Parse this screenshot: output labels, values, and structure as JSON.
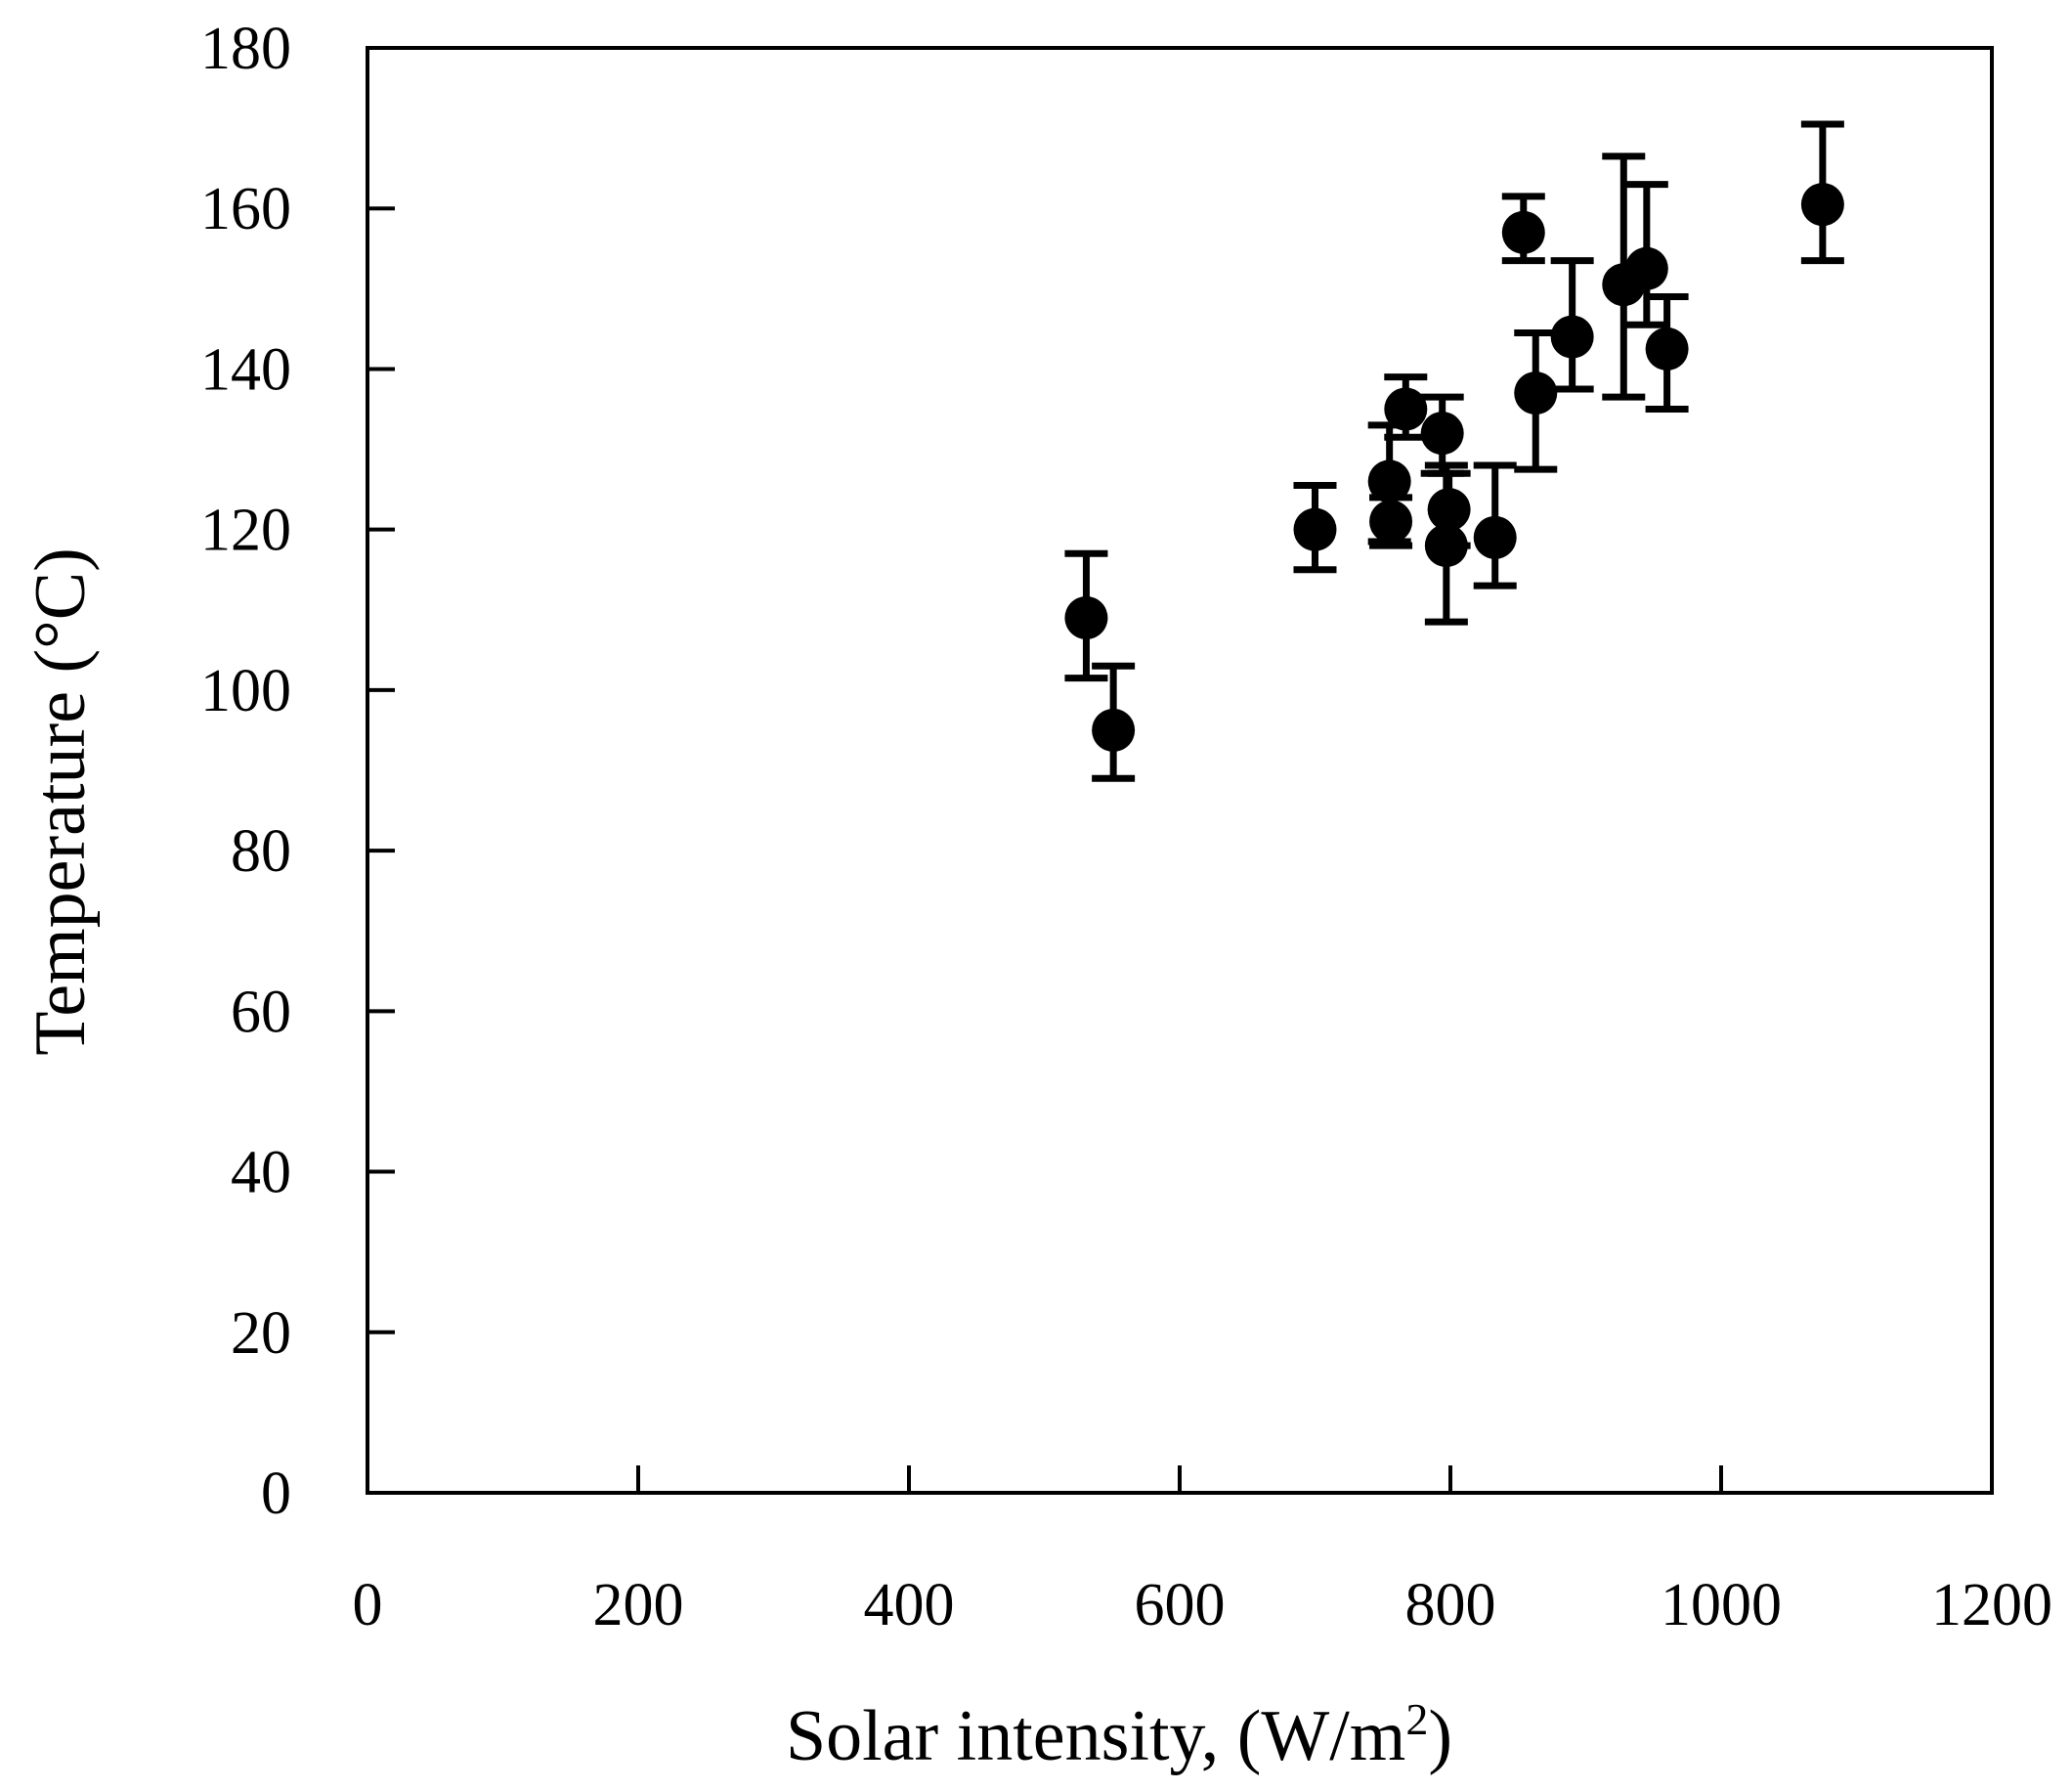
{
  "chart_data": {
    "type": "scatter",
    "title": "",
    "xlabel": "Solar intensity, (W/m",
    "xlabel_superscript": "2",
    "xlabel_suffix": ")",
    "ylabel": "Temperature (°C)",
    "xlim": [
      0,
      1200
    ],
    "ylim": [
      0,
      180
    ],
    "xticks": [
      0,
      200,
      400,
      600,
      800,
      1000,
      1200
    ],
    "yticks": [
      0,
      20,
      40,
      60,
      80,
      100,
      120,
      140,
      160,
      180
    ],
    "grid": false,
    "legend": "none",
    "series": [
      {
        "name": "Temperature",
        "color": "#000000",
        "points": [
          {
            "x": 531,
            "y": 109,
            "err_low": 101.5,
            "err_high": 117
          },
          {
            "x": 551,
            "y": 95,
            "err_low": 89,
            "err_high": 103
          },
          {
            "x": 700,
            "y": 120,
            "err_low": 115,
            "err_high": 125.5
          },
          {
            "x": 755,
            "y": 126,
            "err_low": 118.5,
            "err_high": 133
          },
          {
            "x": 756,
            "y": 121,
            "err_low": 118,
            "err_high": 124
          },
          {
            "x": 767,
            "y": 135,
            "err_low": 131.5,
            "err_high": 139
          },
          {
            "x": 794,
            "y": 132,
            "err_low": 127,
            "err_high": 136.5
          },
          {
            "x": 797,
            "y": 118,
            "err_low": 108.5,
            "err_high": 128
          },
          {
            "x": 799,
            "y": 122.5,
            "err_low": 118,
            "err_high": 127
          },
          {
            "x": 833,
            "y": 119,
            "err_low": 113,
            "err_high": 128
          },
          {
            "x": 854,
            "y": 157,
            "err_low": 153.5,
            "err_high": 161.5
          },
          {
            "x": 863,
            "y": 137,
            "err_low": 127.5,
            "err_high": 144.5
          },
          {
            "x": 890,
            "y": 144,
            "err_low": 137.5,
            "err_high": 153.5
          },
          {
            "x": 928,
            "y": 150.5,
            "err_low": 136.5,
            "err_high": 166.5
          },
          {
            "x": 945,
            "y": 152.5,
            "err_low": 145.5,
            "err_high": 163
          },
          {
            "x": 960,
            "y": 142.5,
            "err_low": 135,
            "err_high": 149
          },
          {
            "x": 1075,
            "y": 160.5,
            "err_low": 153.5,
            "err_high": 170.5
          }
        ]
      }
    ]
  }
}
